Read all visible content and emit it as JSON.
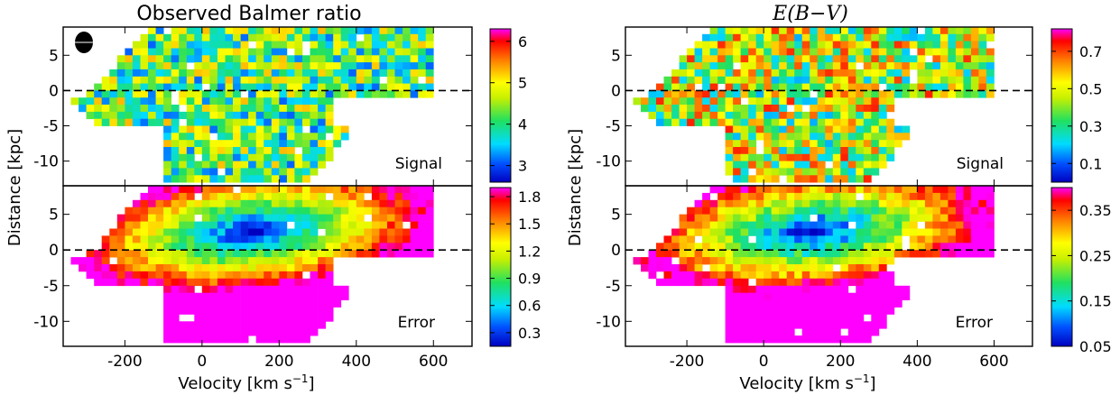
{
  "chart_data": [
    {
      "type": "heatmap",
      "title": "Observed Balmer ratio",
      "xlabel": "Velocity [km s$^{-1}$]",
      "ylabel": "Distance [kpc]",
      "xlim": [
        -360,
        700
      ],
      "xticks": [
        -200,
        0,
        200,
        400,
        600
      ],
      "grid": false,
      "panels": [
        {
          "label": "Signal",
          "ylim": [
            -13.5,
            9
          ],
          "yticks": [
            5,
            0,
            -5,
            -10
          ],
          "zero_line": true,
          "colorbar": {
            "min": 2.6,
            "max": 6.3,
            "ticks": [
              "6",
              "5",
              "4",
              "3"
            ],
            "tick_values": [
              6,
              5,
              4,
              3
            ]
          },
          "center_value": 4.2,
          "noise": 0.55
        },
        {
          "label": "Error",
          "ylim": [
            -13.5,
            9
          ],
          "yticks": [
            5,
            0,
            -5,
            -10
          ],
          "zero_line": true,
          "colorbar": {
            "min": 0.15,
            "max": 1.9,
            "ticks": [
              "1.8",
              "1.5",
              "1.2",
              "0.9",
              "0.6",
              "0.3"
            ],
            "tick_values": [
              1.8,
              1.5,
              1.2,
              0.9,
              0.6,
              0.3
            ]
          },
          "center_value": 0.15,
          "noise": 0.08
        }
      ],
      "beam_marker": {
        "shape": "ellipse",
        "color": "#000000"
      }
    },
    {
      "type": "heatmap",
      "title": "E(B−V)",
      "xlabel": "Velocity [km s$^{-1}$]",
      "ylabel": "Distance [kpc]",
      "xlim": [
        -360,
        700
      ],
      "xticks": [
        -200,
        0,
        200,
        400,
        600
      ],
      "grid": false,
      "panels": [
        {
          "label": "Signal",
          "ylim": [
            -13.5,
            9
          ],
          "yticks": [
            5,
            0,
            -5,
            -10
          ],
          "zero_line": true,
          "colorbar": {
            "min": 0.0,
            "max": 0.82,
            "ticks": [
              "0.7",
              "0.5",
              "0.3",
              "0.1"
            ],
            "tick_values": [
              0.7,
              0.5,
              0.3,
              0.1
            ]
          },
          "center_value": 0.45,
          "noise": 0.14
        },
        {
          "label": "Error",
          "ylim": [
            -13.5,
            9
          ],
          "yticks": [
            5,
            0,
            -5,
            -10
          ],
          "zero_line": true,
          "colorbar": {
            "min": 0.05,
            "max": 0.4,
            "ticks": [
              "0.35",
              "0.25",
              "0.15",
              "0.05"
            ],
            "tick_values": [
              0.35,
              0.25,
              0.15,
              0.05
            ]
          },
          "center_value": 0.05,
          "noise": 0.02
        }
      ]
    }
  ]
}
